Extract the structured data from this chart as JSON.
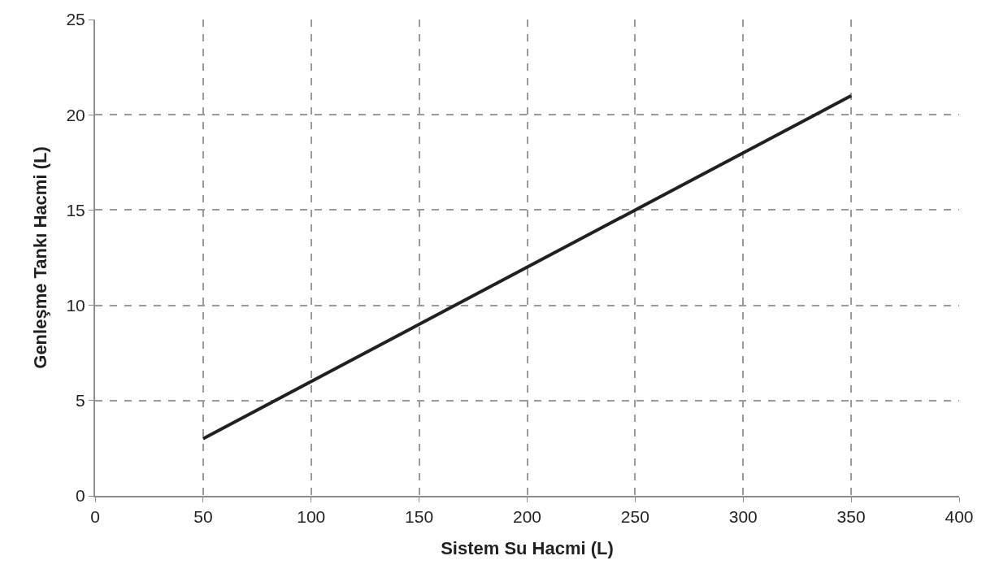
{
  "chart_data": {
    "type": "line",
    "xlabel": "Sistem Su Hacmi (L)",
    "ylabel": "Genleşme Tankı Hacmi (L)",
    "x": [
      50,
      350
    ],
    "series": [
      {
        "color": "#231f20",
        "values": [
          3,
          21
        ]
      }
    ],
    "xlim": [
      0,
      400
    ],
    "xticks": [
      0,
      50,
      100,
      150,
      200,
      250,
      300,
      350,
      400
    ],
    "ylim": [
      0,
      25
    ],
    "yticks": [
      0,
      5,
      10,
      15,
      20,
      25
    ],
    "grid": true,
    "line_style": "solid",
    "marker": "none"
  }
}
